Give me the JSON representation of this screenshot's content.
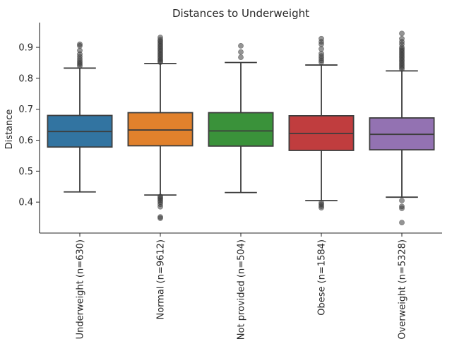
{
  "chart_data": {
    "type": "box",
    "title": "Distances to Underweight",
    "xlabel": "",
    "ylabel": "Distance",
    "ylim": [
      0.3,
      0.98
    ],
    "yticks": [
      0.4,
      0.5,
      0.6,
      0.7,
      0.8,
      0.9
    ],
    "ytick_labels": [
      "0.4",
      "0.5",
      "0.6",
      "0.7",
      "0.8",
      "0.9"
    ],
    "grid": false,
    "legend": "none",
    "categories": [
      "Underweight (n=630)",
      "Normal (n=9612)",
      "Not provided (n=504)",
      "Obese (n=1584)",
      "Overweight (n=5328)"
    ],
    "boxes": [
      {
        "category": "Underweight (n=630)",
        "color": "#3274a1",
        "whisker_low": 0.433,
        "q1": 0.578,
        "median": 0.628,
        "q3": 0.68,
        "whisker_high": 0.833,
        "outliers": [
          0.84,
          0.845,
          0.85,
          0.855,
          0.862,
          0.87,
          0.878,
          0.89,
          0.905,
          0.91
        ]
      },
      {
        "category": "Normal (n=9612)",
        "color": "#e1812c",
        "whisker_low": 0.423,
        "q1": 0.582,
        "median": 0.633,
        "q3": 0.689,
        "whisker_high": 0.848,
        "outliers": [
          0.852,
          0.856,
          0.86,
          0.865,
          0.87,
          0.875,
          0.88,
          0.885,
          0.89,
          0.895,
          0.9,
          0.905,
          0.91,
          0.915,
          0.92,
          0.925,
          0.932,
          0.418,
          0.414,
          0.41,
          0.405,
          0.4,
          0.393,
          0.385,
          0.352,
          0.348
        ]
      },
      {
        "category": "Not provided (n=504)",
        "color": "#3a923a",
        "whisker_low": 0.431,
        "q1": 0.581,
        "median": 0.63,
        "q3": 0.689,
        "whisker_high": 0.851,
        "outliers": [
          0.868,
          0.885,
          0.905
        ]
      },
      {
        "category": "Obese (n=1584)",
        "color": "#c03d3e",
        "whisker_low": 0.405,
        "q1": 0.567,
        "median": 0.622,
        "q3": 0.679,
        "whisker_high": 0.843,
        "outliers": [
          0.852,
          0.858,
          0.865,
          0.872,
          0.88,
          0.895,
          0.91,
          0.918,
          0.928,
          0.398,
          0.393,
          0.387,
          0.382
        ]
      },
      {
        "category": "Overweight (n=5328)",
        "color": "#9372b2",
        "whisker_low": 0.416,
        "q1": 0.569,
        "median": 0.619,
        "q3": 0.672,
        "whisker_high": 0.824,
        "outliers": [
          0.83,
          0.835,
          0.84,
          0.845,
          0.85,
          0.855,
          0.86,
          0.865,
          0.87,
          0.875,
          0.88,
          0.885,
          0.89,
          0.895,
          0.9,
          0.91,
          0.918,
          0.928,
          0.945,
          0.405,
          0.386,
          0.38,
          0.334
        ]
      }
    ]
  }
}
